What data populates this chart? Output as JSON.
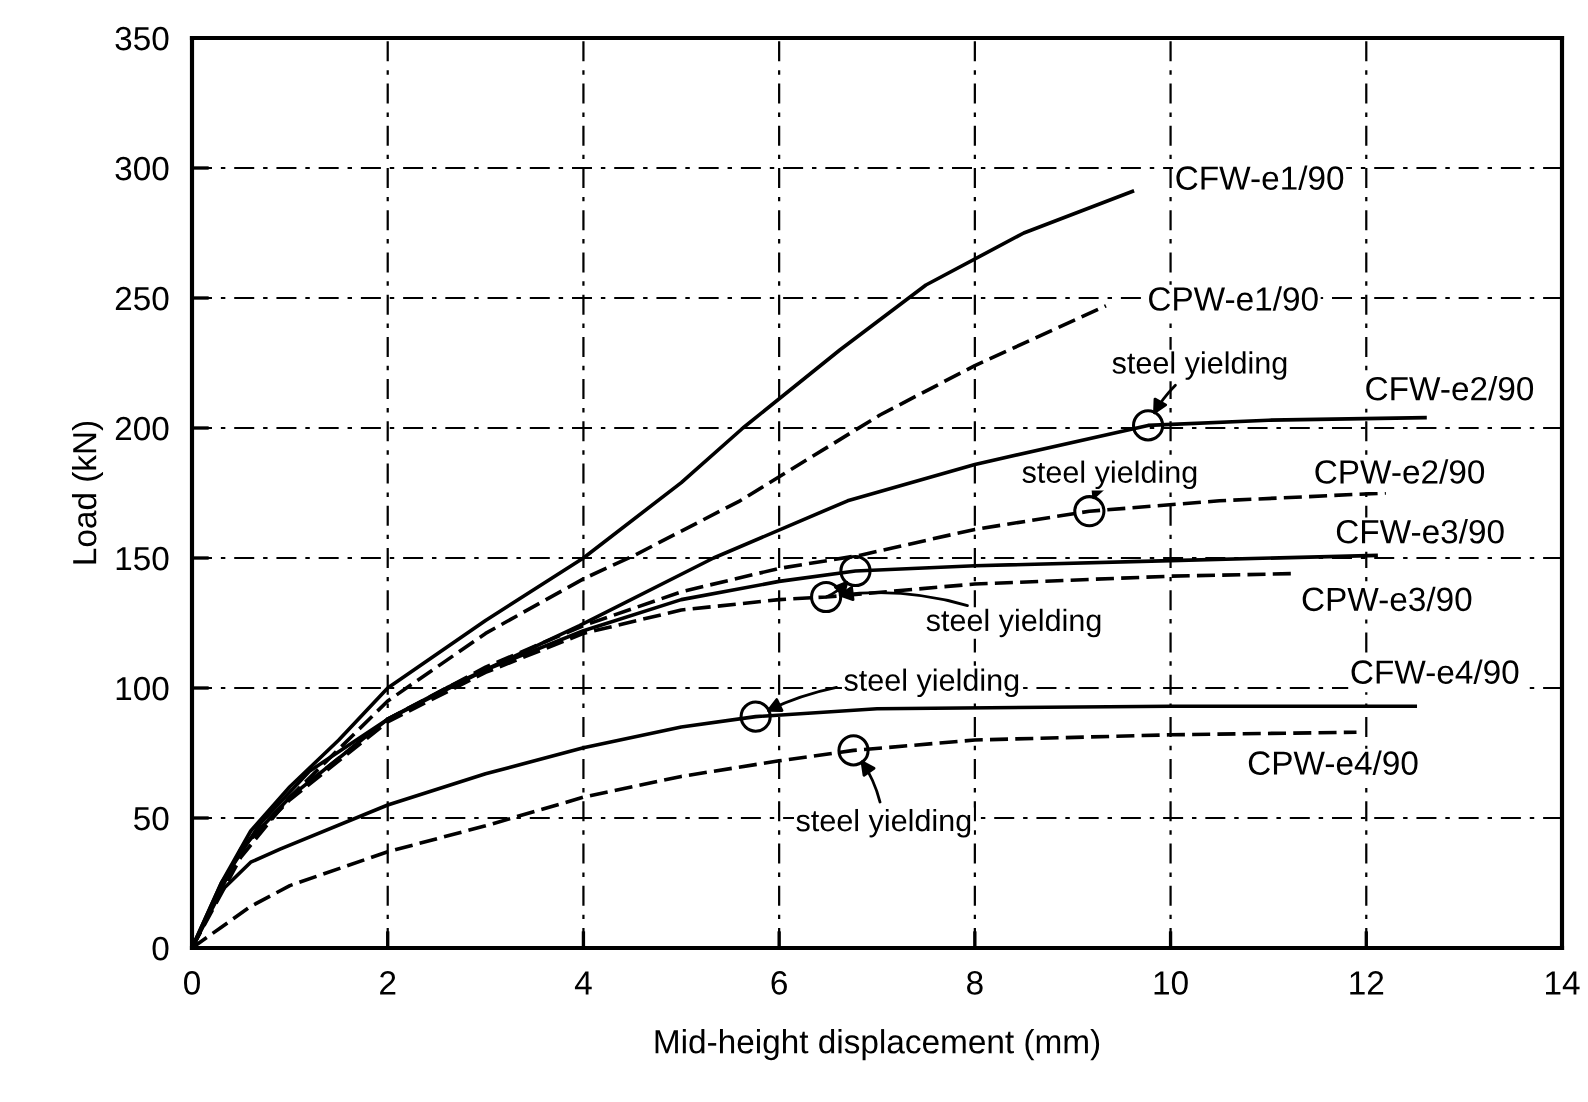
{
  "chart_data": {
    "type": "line",
    "xlabel": "Mid-height displacement (mm)",
    "ylabel": "Load (kN)",
    "xlim": [
      0,
      14
    ],
    "xticks": [
      0,
      2,
      4,
      6,
      8,
      10,
      12,
      14
    ],
    "ylim": [
      0,
      350
    ],
    "yticks": [
      0,
      50,
      100,
      150,
      200,
      250,
      300,
      350
    ],
    "grid": true,
    "marker": "none",
    "series": [
      {
        "name": "CFW-e1/90",
        "color": "#000000",
        "line_style": "solid",
        "x": [
          0,
          0.3,
          0.6,
          1,
          1.5,
          2,
          3,
          4,
          5,
          5.63,
          6.62,
          7.5,
          8.5,
          9.61
        ],
        "values": [
          0,
          25,
          45,
          62,
          80,
          100,
          126,
          150,
          179,
          200,
          230,
          255,
          275,
          291
        ]
      },
      {
        "name": "CPW-e1/90",
        "color": "#000000",
        "line_style": "dashed",
        "x": [
          0,
          0.5,
          1,
          2,
          3,
          4,
          4.52,
          5.6,
          7.03,
          8,
          9.34
        ],
        "values": [
          0,
          35,
          58,
          95,
          121,
          142,
          151,
          172,
          205,
          224,
          247
        ]
      },
      {
        "name": "CFW-e2/90",
        "color": "#000000",
        "line_style": "solid",
        "x": [
          0,
          0.3,
          0.7,
          1.2,
          2,
          2.6,
          3.96,
          5.33,
          6.7,
          8,
          9.77,
          11,
          12.6
        ],
        "values": [
          0,
          25,
          48,
          68,
          88,
          100,
          124,
          150,
          172,
          186,
          201,
          203,
          204
        ]
      },
      {
        "name": "CPW-e2/90",
        "color": "#000000",
        "line_style": "dashed",
        "x": [
          0,
          0.5,
          1,
          2,
          3,
          4,
          5,
          6,
          6.82,
          8,
          9.17,
          10.5,
          12.2
        ],
        "values": [
          0,
          38,
          58,
          88,
          108,
          124,
          137,
          146,
          151,
          161,
          168,
          172,
          175
        ]
      },
      {
        "name": "CFW-e3/90",
        "color": "#000000",
        "line_style": "solid",
        "x": [
          0,
          0.5,
          1,
          2,
          3,
          4,
          5,
          6,
          6.78,
          8,
          10,
          12.1
        ],
        "values": [
          0,
          38,
          58,
          88,
          107,
          122,
          134,
          141,
          145,
          147,
          149,
          151
        ]
      },
      {
        "name": "CPW-e3/90",
        "color": "#000000",
        "line_style": "dashed",
        "x": [
          0,
          0.5,
          1,
          2,
          3,
          4,
          5,
          6,
          6.48,
          8,
          10,
          11.26
        ],
        "values": [
          0,
          38,
          57,
          87,
          106,
          121,
          130,
          134,
          135,
          140,
          143,
          144
        ]
      },
      {
        "name": "CFW-e4/90",
        "color": "#000000",
        "line_style": "solid",
        "x": [
          0,
          0.3,
          0.6,
          0.9,
          2,
          3,
          4,
          5,
          5.76,
          7,
          10,
          12.5
        ],
        "values": [
          0,
          22,
          33,
          38,
          55,
          67,
          77,
          85,
          89,
          92,
          93,
          93
        ]
      },
      {
        "name": "CPW-e4/90",
        "color": "#000000",
        "line_style": "dashed",
        "x": [
          0,
          0.3,
          0.6,
          1,
          2,
          3,
          4,
          5,
          6,
          6.76,
          8,
          10,
          11.9
        ],
        "values": [
          0,
          8,
          16,
          24,
          37,
          47,
          58,
          66,
          72,
          76,
          80,
          82,
          83
        ]
      },
      {
        "type": "scatter",
        "marker": "circle",
        "color": "#000000",
        "x": [
          9.77,
          9.17,
          6.78,
          6.48,
          5.76,
          6.76
        ],
        "values": [
          201,
          168,
          145,
          135,
          89,
          76
        ]
      }
    ],
    "annotations": [
      {
        "text": "steel yielding",
        "x": 9.77,
        "y": 201
      },
      {
        "text": "steel yielding",
        "x": 9.17,
        "y": 168
      },
      {
        "text": "steel yielding",
        "x": 6.48,
        "y": 135
      },
      {
        "text": "steel yielding",
        "x": 5.76,
        "y": 89
      },
      {
        "text": "steel yielding",
        "x": 6.76,
        "y": 76
      }
    ]
  }
}
